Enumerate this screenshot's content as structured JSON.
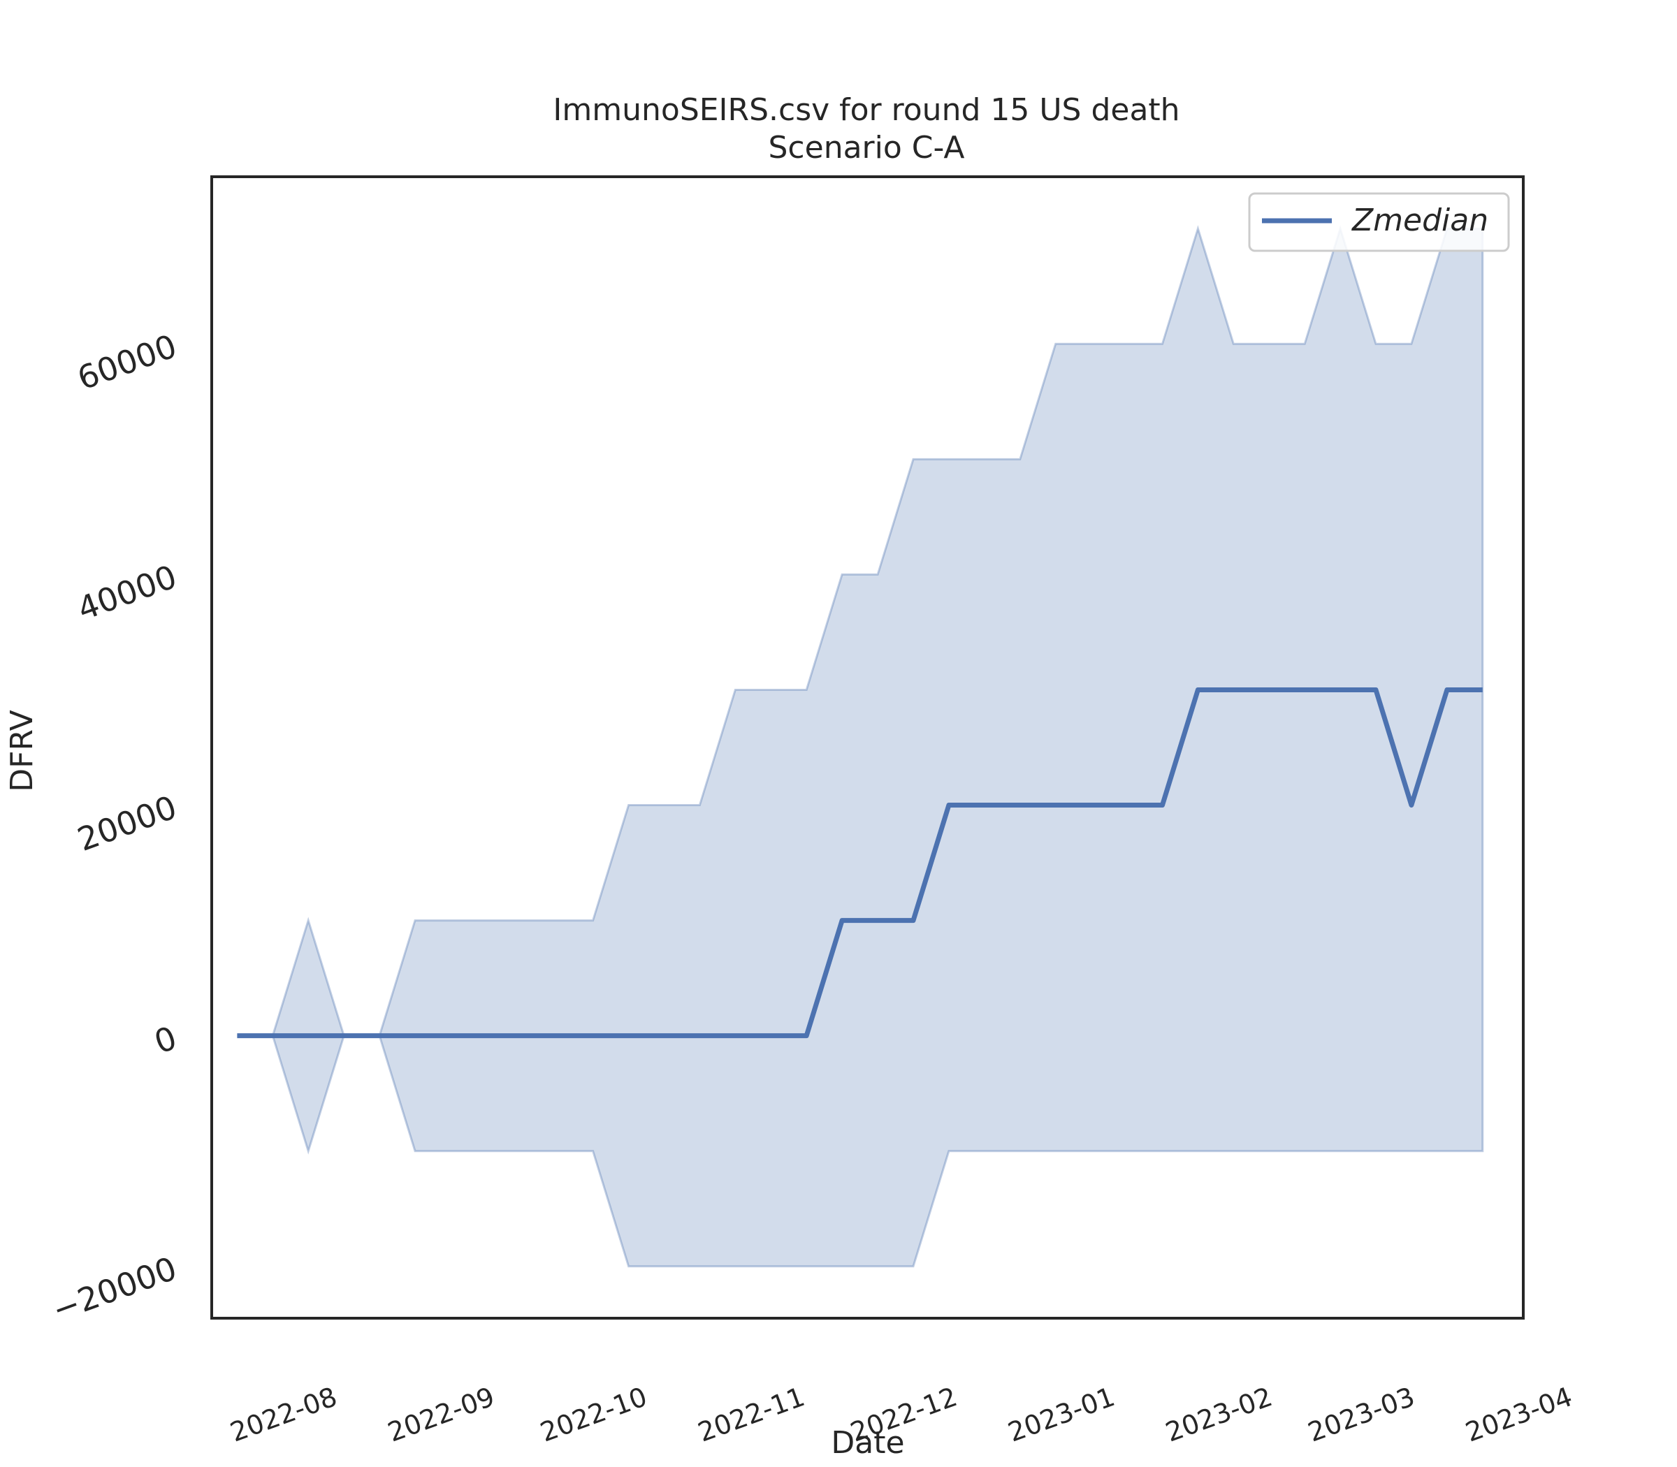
{
  "chart_data": {
    "type": "line",
    "title": "ImmunoSEIRS.csv for round 15 US death",
    "subtitle": "Scenario C-A",
    "xlabel": "Date",
    "ylabel": "DFRV",
    "legend": {
      "placement": "top-right",
      "entries": [
        "Zmedian"
      ]
    },
    "grid": false,
    "x_tick_labels": [
      "2022-08",
      "2022-09",
      "2022-10",
      "2022-11",
      "2022-12",
      "2023-01",
      "2023-02",
      "2023-03",
      "2023-04"
    ],
    "y_tick_labels": [
      "−20000",
      "0",
      "20000",
      "40000",
      "60000"
    ],
    "xlim": [
      "2022-07-18",
      "2023-04-02"
    ],
    "ylim": [
      -24500,
      74500
    ],
    "colors": {
      "line": "#4c72b0",
      "band": "#4c72b0"
    },
    "x": [
      "2022-07-23",
      "2022-07-30",
      "2022-08-06",
      "2022-08-13",
      "2022-08-20",
      "2022-08-27",
      "2022-09-03",
      "2022-09-10",
      "2022-09-17",
      "2022-09-24",
      "2022-10-01",
      "2022-10-08",
      "2022-10-15",
      "2022-10-22",
      "2022-10-29",
      "2022-11-05",
      "2022-11-12",
      "2022-11-19",
      "2022-11-26",
      "2022-12-03",
      "2022-12-10",
      "2022-12-17",
      "2022-12-24",
      "2022-12-31",
      "2023-01-07",
      "2023-01-14",
      "2023-01-21",
      "2023-01-28",
      "2023-02-04",
      "2023-02-11",
      "2023-02-18",
      "2023-02-25",
      "2023-03-04",
      "2023-03-11",
      "2023-03-18",
      "2023-03-25"
    ],
    "series": [
      {
        "name": "Zmedian",
        "values": [
          0,
          0,
          0,
          0,
          0,
          0,
          0,
          0,
          0,
          0,
          0,
          0,
          0,
          0,
          0,
          0,
          0,
          10000,
          10000,
          10000,
          20000,
          20000,
          20000,
          20000,
          20000,
          20000,
          20000,
          30000,
          30000,
          30000,
          30000,
          30000,
          30000,
          20000,
          30000,
          30000
        ]
      }
    ],
    "band": {
      "lower": [
        0,
        0,
        -10000,
        0,
        0,
        -10000,
        -10000,
        -10000,
        -10000,
        -10000,
        -10000,
        -20000,
        -20000,
        -20000,
        -20000,
        -20000,
        -20000,
        -20000,
        -20000,
        -20000,
        -10000,
        -10000,
        -10000,
        -10000,
        -10000,
        -10000,
        -10000,
        -10000,
        -10000,
        -10000,
        -10000,
        -10000,
        -10000,
        -10000,
        -10000,
        -10000
      ],
      "upper": [
        0,
        0,
        10000,
        0,
        0,
        10000,
        10000,
        10000,
        10000,
        10000,
        10000,
        20000,
        20000,
        20000,
        30000,
        30000,
        30000,
        40000,
        40000,
        50000,
        50000,
        50000,
        50000,
        60000,
        60000,
        60000,
        60000,
        70000,
        60000,
        60000,
        60000,
        70000,
        60000,
        60000,
        70000,
        70000
      ]
    }
  }
}
